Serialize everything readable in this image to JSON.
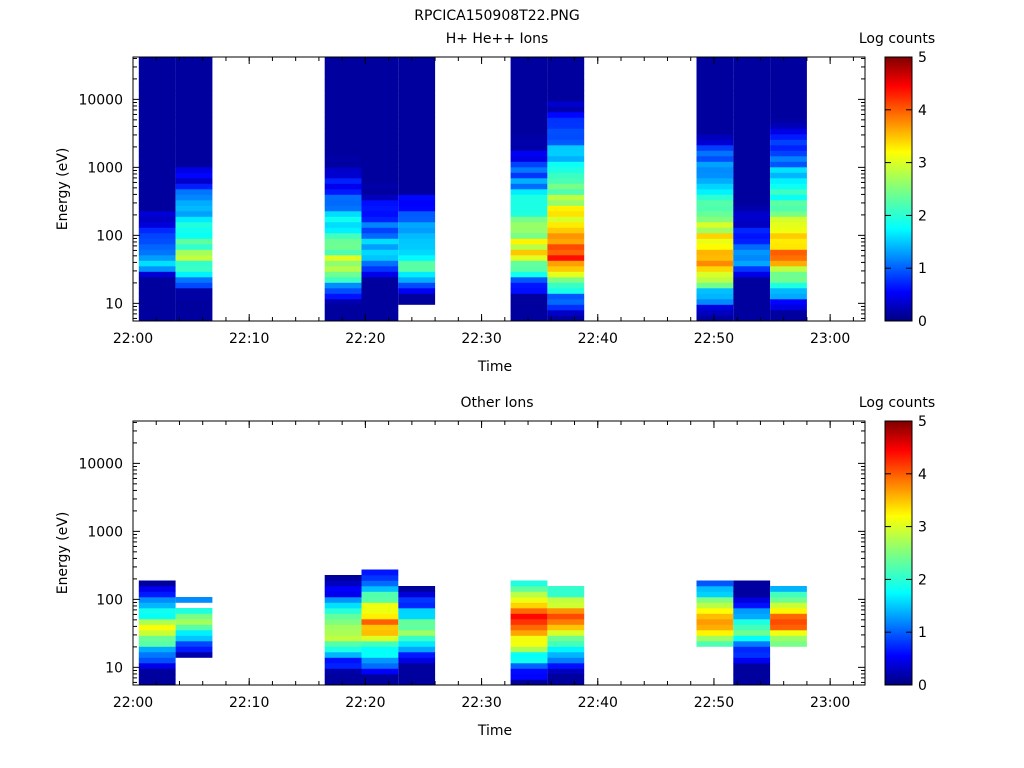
{
  "figure": {
    "title": "RPCICA150908T22.PNG"
  },
  "colorbar_scheme": "jet",
  "chart_data": [
    {
      "type": "heatmap",
      "title": "H+ He++ Ions",
      "xlabel": "Time",
      "ylabel": "Energy (eV)",
      "yscale": "log",
      "ylim": [
        5.5,
        42000
      ],
      "x_range": [
        "22:00",
        "23:03"
      ],
      "x_ticks": [
        "22:00",
        "22:10",
        "22:20",
        "22:30",
        "22:40",
        "22:50",
        "23:00"
      ],
      "y_ticks": [
        {
          "value": 10,
          "label": "10"
        },
        {
          "value": 100,
          "label": "100"
        },
        {
          "value": 1000,
          "label": "1000"
        },
        {
          "value": 10000,
          "label": "10000"
        }
      ],
      "colorbar": {
        "label": "Log counts",
        "range": [
          0,
          5
        ],
        "ticks": [
          "0",
          "1",
          "2",
          "3",
          "4",
          "5"
        ]
      },
      "sweeps": [
        {
          "start": "22:00:30",
          "end": "22:03:40",
          "peak_energy_eV": 40,
          "peak_log_counts": 1.5,
          "max_energy_eV": 40000,
          "min_energy_eV": 6
        },
        {
          "start": "22:03:40",
          "end": "22:06:50",
          "peak_energy_eV": 45,
          "peak_log_counts": 2.7,
          "max_energy_eV": 40000,
          "min_energy_eV": 6
        },
        {
          "start": "22:16:30",
          "end": "22:19:40",
          "peak_energy_eV": 35,
          "peak_log_counts": 2.9,
          "max_energy_eV": 40000,
          "min_energy_eV": 6
        },
        {
          "start": "22:19:40",
          "end": "22:22:50",
          "peak_energy_eV": 50,
          "peak_log_counts": 1.9,
          "max_energy_eV": 40000,
          "min_energy_eV": 6
        },
        {
          "start": "22:22:50",
          "end": "22:26:00",
          "peak_energy_eV": 35,
          "peak_log_counts": 2.3,
          "max_energy_eV": 40000,
          "min_energy_eV": 9
        },
        {
          "start": "22:32:30",
          "end": "22:35:40",
          "peak_energy_eV": 55,
          "peak_log_counts": 3.2,
          "max_energy_eV": 40000,
          "min_energy_eV": 6
        },
        {
          "start": "22:35:40",
          "end": "22:38:50",
          "peak_energy_eV": 50,
          "peak_log_counts": 4.2,
          "max_energy_eV": 40000,
          "min_energy_eV": 6
        },
        {
          "start": "22:48:30",
          "end": "22:51:40",
          "peak_energy_eV": 40,
          "peak_log_counts": 3.8,
          "max_energy_eV": 40000,
          "min_energy_eV": 6
        },
        {
          "start": "22:51:40",
          "end": "22:54:50",
          "peak_energy_eV": 40,
          "peak_log_counts": 1.5,
          "max_energy_eV": 40000,
          "min_energy_eV": 6
        },
        {
          "start": "22:54:50",
          "end": "22:58:00",
          "peak_energy_eV": 45,
          "peak_log_counts": 3.8,
          "max_energy_eV": 40000,
          "min_energy_eV": 6
        }
      ]
    },
    {
      "type": "heatmap",
      "title": "Other Ions",
      "xlabel": "Time",
      "ylabel": "Energy (eV)",
      "yscale": "log",
      "ylim": [
        5.5,
        42000
      ],
      "x_range": [
        "22:00",
        "23:03"
      ],
      "x_ticks": [
        "22:00",
        "22:10",
        "22:20",
        "22:30",
        "22:40",
        "22:50",
        "23:00"
      ],
      "y_ticks": [
        {
          "value": 10,
          "label": "10"
        },
        {
          "value": 100,
          "label": "100"
        },
        {
          "value": 1000,
          "label": "1000"
        },
        {
          "value": 10000,
          "label": "10000"
        }
      ],
      "colorbar": {
        "label": "Log counts",
        "range": [
          0,
          5
        ],
        "ticks": [
          "0",
          "1",
          "2",
          "3",
          "4",
          "5"
        ]
      },
      "sweeps": [
        {
          "start": "22:00:30",
          "end": "22:03:40",
          "peak_energy_eV": 35,
          "peak_log_counts": 3.0,
          "max_energy_eV": 220,
          "min_energy_eV": 6
        },
        {
          "start": "22:03:40",
          "end": "22:06:50",
          "peak_energy_eV": 50,
          "peak_log_counts": 2.8,
          "max_energy_eV": 100,
          "min_energy_eV": 15
        },
        {
          "start": "22:16:30",
          "end": "22:19:40",
          "peak_energy_eV": 35,
          "peak_log_counts": 3.1,
          "max_energy_eV": 210,
          "min_energy_eV": 6
        },
        {
          "start": "22:19:40",
          "end": "22:22:50",
          "peak_energy_eV": 45,
          "peak_log_counts": 3.9,
          "max_energy_eV": 300,
          "min_energy_eV": 6
        },
        {
          "start": "22:22:50",
          "end": "22:26:00",
          "peak_energy_eV": 35,
          "peak_log_counts": 2.7,
          "max_energy_eV": 160,
          "min_energy_eV": 6
        },
        {
          "start": "22:32:30",
          "end": "22:35:40",
          "peak_energy_eV": 50,
          "peak_log_counts": 4.5,
          "max_energy_eV": 200,
          "min_energy_eV": 6
        },
        {
          "start": "22:35:40",
          "end": "22:38:50",
          "peak_energy_eV": 50,
          "peak_log_counts": 4.0,
          "max_energy_eV": 170,
          "min_energy_eV": 6
        },
        {
          "start": "22:48:30",
          "end": "22:51:40",
          "peak_energy_eV": 45,
          "peak_log_counts": 3.8,
          "max_energy_eV": 180,
          "min_energy_eV": 20
        },
        {
          "start": "22:51:40",
          "end": "22:54:50",
          "peak_energy_eV": 35,
          "peak_log_counts": 2.4,
          "max_energy_eV": 190,
          "min_energy_eV": 6
        },
        {
          "start": "22:54:50",
          "end": "22:58:00",
          "peak_energy_eV": 45,
          "peak_log_counts": 4.0,
          "max_energy_eV": 160,
          "min_energy_eV": 20
        }
      ]
    }
  ]
}
